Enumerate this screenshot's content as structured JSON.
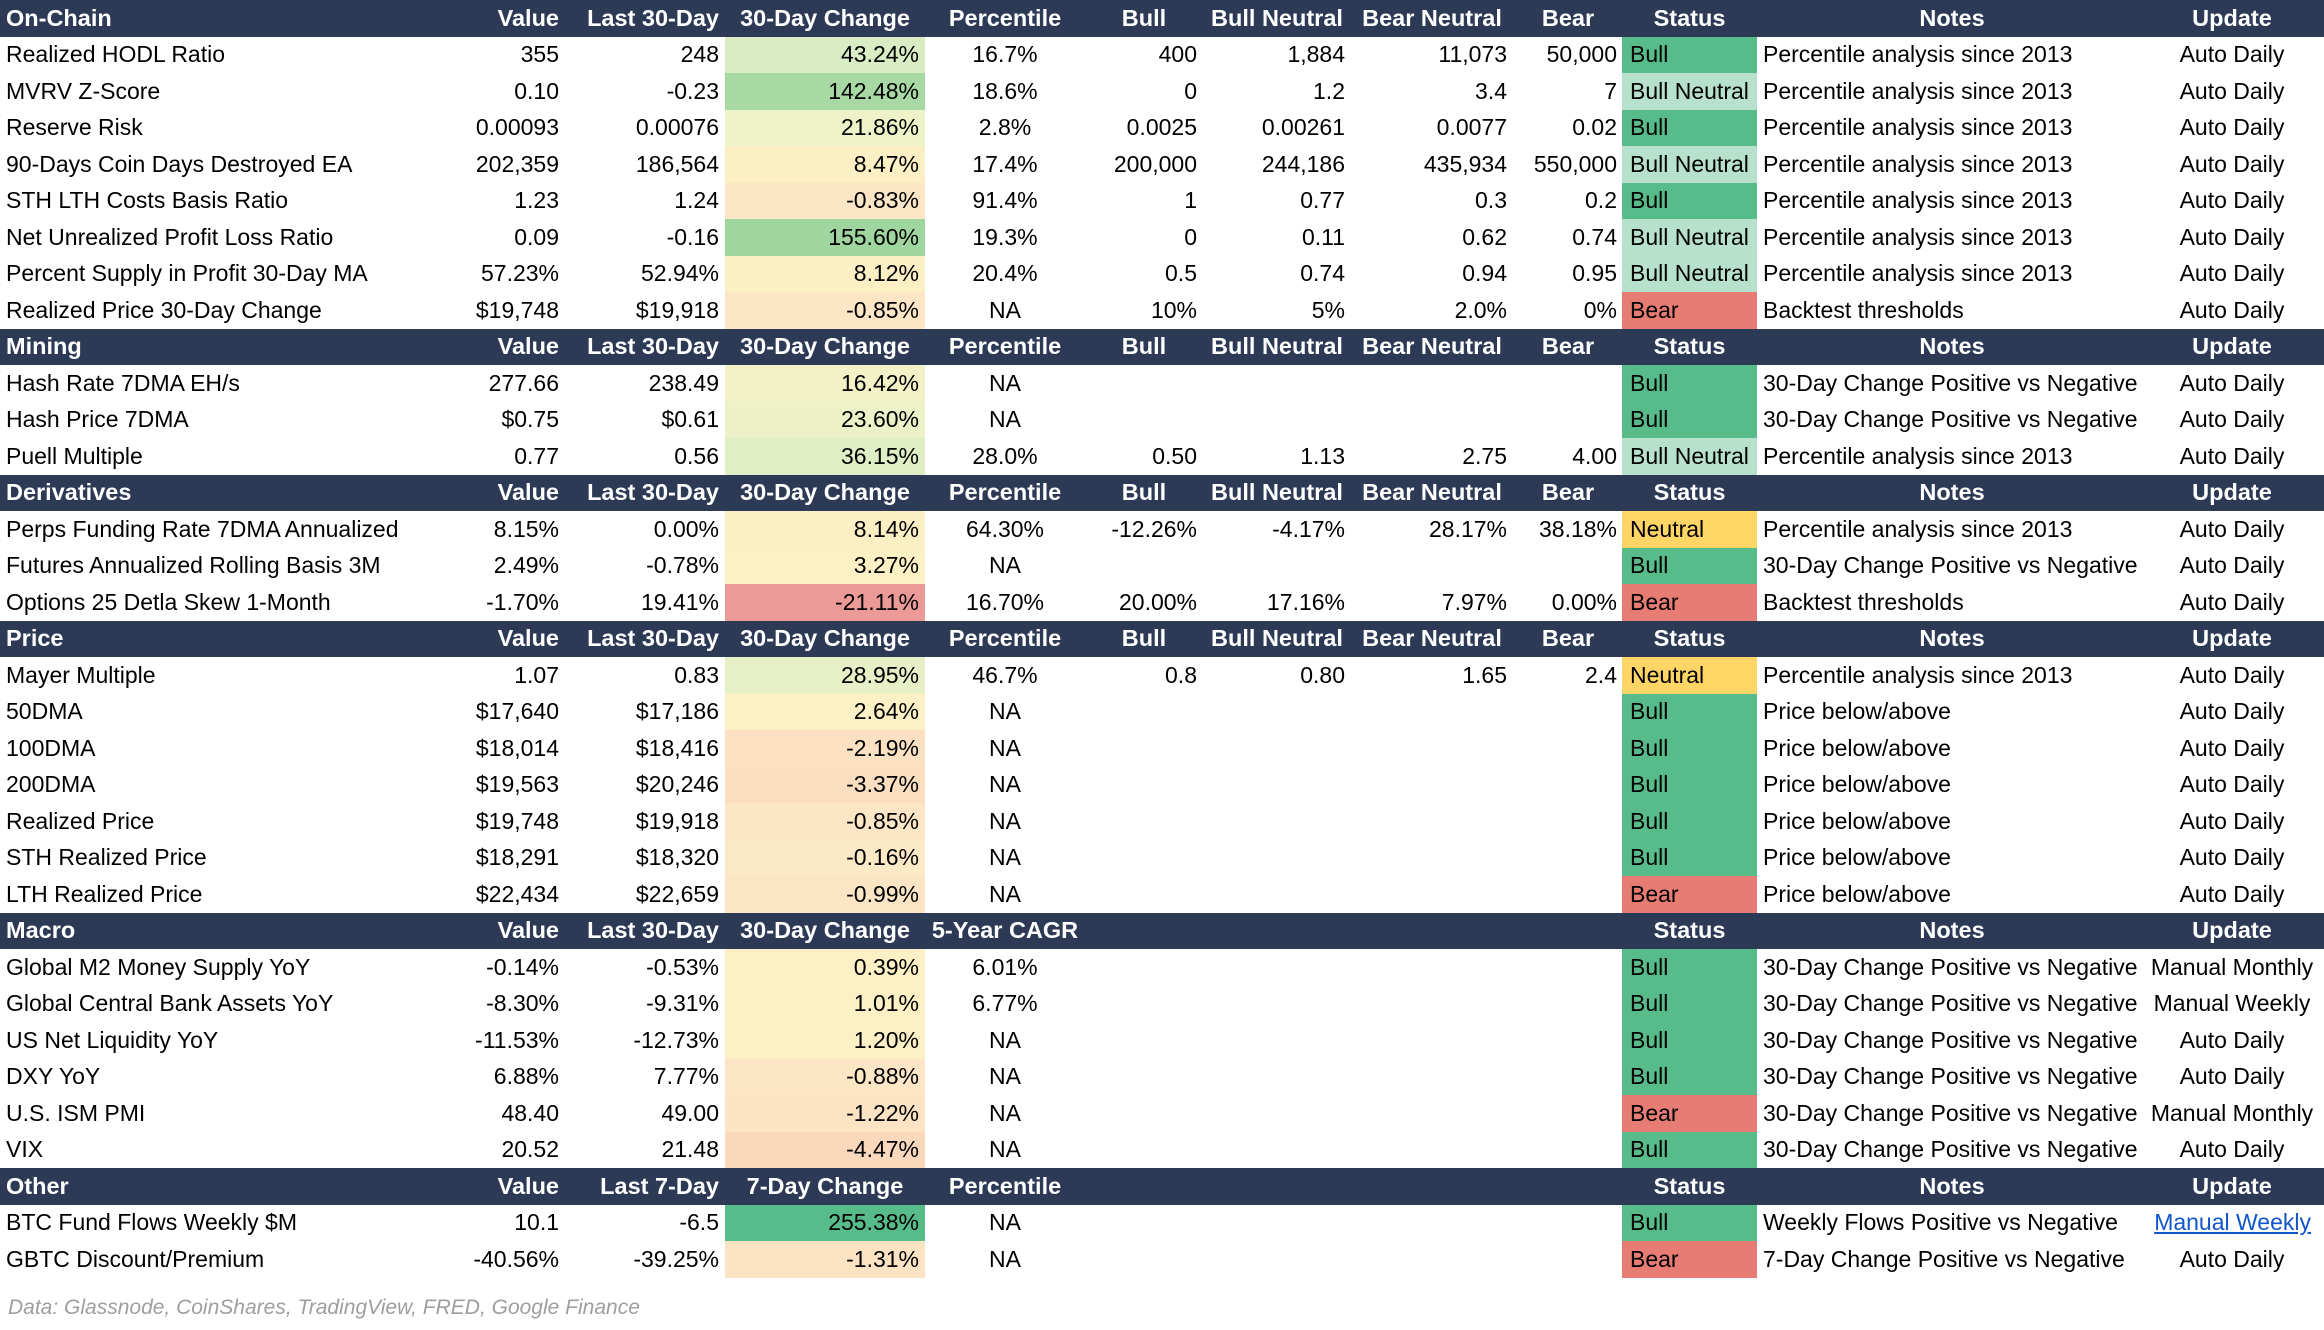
{
  "columns": {
    "value": "Value",
    "last30": "Last 30-Day",
    "change30": "30-Day Change",
    "percentile": "Percentile",
    "bull": "Bull",
    "bull_neutral": "Bull Neutral",
    "bear_neutral": "Bear Neutral",
    "bear": "Bear",
    "status": "Status",
    "notes": "Notes",
    "update": "Update"
  },
  "status_colors": {
    "Bull": "#57bb8a",
    "Bull Neutral": "#b7e1cd",
    "Neutral": "#ffd666",
    "Bear": "#e67c73"
  },
  "sections": [
    {
      "title": "On-Chain",
      "headers": [
        "Value",
        "Last 30-Day",
        "30-Day Change",
        "Percentile",
        "Bull",
        "Bull Neutral",
        "Bear Neutral",
        "Bear",
        "Status",
        "Notes",
        "Update"
      ],
      "rows": [
        {
          "metric": "Realized HODL Ratio",
          "value": "355",
          "last": "248",
          "change": "43.24%",
          "change_color": "#d9ecc3",
          "percentile": "16.7%",
          "bull": "400",
          "bull_neutral": "1,884",
          "bear_neutral": "11,073",
          "bear": "50,000",
          "status": "Bull",
          "notes": "Percentile analysis since 2013",
          "update": "Auto Daily"
        },
        {
          "metric": "MVRV Z-Score",
          "value": "0.10",
          "last": "-0.23",
          "change": "142.48%",
          "change_color": "#a8d8a3",
          "percentile": "18.6%",
          "bull": "0",
          "bull_neutral": "1.2",
          "bear_neutral": "3.4",
          "bear": "7",
          "status": "Bull Neutral",
          "notes": "Percentile analysis since 2013",
          "update": "Auto Daily"
        },
        {
          "metric": "Reserve Risk",
          "value": "0.00093",
          "last": "0.00076",
          "change": "21.86%",
          "change_color": "#eef2c9",
          "percentile": "2.8%",
          "bull": "0.0025",
          "bull_neutral": "0.00261",
          "bear_neutral": "0.0077",
          "bear": "0.02",
          "status": "Bull",
          "notes": "Percentile analysis since 2013",
          "update": "Auto Daily"
        },
        {
          "metric": "90-Days Coin Days Destroyed EA",
          "value": "202,359",
          "last": "186,564",
          "change": "8.47%",
          "change_color": "#fcefc4",
          "percentile": "17.4%",
          "bull": "200,000",
          "bull_neutral": "244,186",
          "bear_neutral": "435,934",
          "bear": "550,000",
          "status": "Bull Neutral",
          "notes": "Percentile analysis since 2013",
          "update": "Auto Daily"
        },
        {
          "metric": "STH LTH Costs Basis Ratio",
          "value": "1.23",
          "last": "1.24",
          "change": "-0.83%",
          "change_color": "#fce6c6",
          "percentile": "91.4%",
          "bull": "1",
          "bull_neutral": "0.77",
          "bear_neutral": "0.3",
          "bear": "0.2",
          "status": "Bull",
          "notes": "Percentile analysis since 2013",
          "update": "Auto Daily"
        },
        {
          "metric": "Net Unrealized Profit Loss Ratio",
          "value": "0.09",
          "last": "-0.16",
          "change": "155.60%",
          "change_color": "#9fd59e",
          "percentile": "19.3%",
          "bull": "0",
          "bull_neutral": "0.11",
          "bear_neutral": "0.62",
          "bear": "0.74",
          "status": "Bull Neutral",
          "notes": "Percentile analysis since 2013",
          "update": "Auto Daily"
        },
        {
          "metric": "Percent Supply in Profit 30-Day MA",
          "value": "57.23%",
          "last": "52.94%",
          "change": "8.12%",
          "change_color": "#fcefc4",
          "percentile": "20.4%",
          "bull": "0.5",
          "bull_neutral": "0.74",
          "bear_neutral": "0.94",
          "bear": "0.95",
          "status": "Bull Neutral",
          "notes": "Percentile analysis since 2013",
          "update": "Auto Daily"
        },
        {
          "metric": "Realized Price 30-Day Change",
          "value": "$19,748",
          "last": "$19,918",
          "change": "-0.85%",
          "change_color": "#fce6c6",
          "percentile": "NA",
          "bull": "10%",
          "bull_neutral": "5%",
          "bear_neutral": "2.0%",
          "bear": "0%",
          "status": "Bear",
          "notes": "Backtest thresholds",
          "update": "Auto Daily"
        }
      ]
    },
    {
      "title": "Mining",
      "headers": [
        "Value",
        "Last 30-Day",
        "30-Day Change",
        "Percentile",
        "Bull",
        "Bull Neutral",
        "Bear Neutral",
        "Bear",
        "Status",
        "Notes",
        "Update"
      ],
      "rows": [
        {
          "metric": "Hash Rate 7DMA EH/s",
          "value": "277.66",
          "last": "238.49",
          "change": "16.42%",
          "change_color": "#f3f1c6",
          "percentile": "NA",
          "bull": "",
          "bull_neutral": "",
          "bear_neutral": "",
          "bear": "",
          "status": "Bull",
          "notes": "30-Day Change Positive vs Negative",
          "update": "Auto Daily"
        },
        {
          "metric": "Hash Price 7DMA",
          "value": "$0.75",
          "last": "$0.61",
          "change": "23.60%",
          "change_color": "#ecf1c8",
          "percentile": "NA",
          "bull": "",
          "bull_neutral": "",
          "bear_neutral": "",
          "bear": "",
          "status": "Bull",
          "notes": "30-Day Change Positive vs Negative",
          "update": "Auto Daily"
        },
        {
          "metric": "Puell Multiple",
          "value": "0.77",
          "last": "0.56",
          "change": "36.15%",
          "change_color": "#e0eec5",
          "percentile": "28.0%",
          "bull": "0.50",
          "bull_neutral": "1.13",
          "bear_neutral": "2.75",
          "bear": "4.00",
          "status": "Bull Neutral",
          "notes": "Percentile analysis since 2013",
          "update": "Auto Daily"
        }
      ]
    },
    {
      "title": "Derivatives",
      "headers": [
        "Value",
        "Last 30-Day",
        "30-Day Change",
        "Percentile",
        "Bull",
        "Bull Neutral",
        "Bear Neutral",
        "Bear",
        "Status",
        "Notes",
        "Update"
      ],
      "rows": [
        {
          "metric": "Perps Funding Rate 7DMA Annualized",
          "value": "8.15%",
          "last": "0.00%",
          "change": "8.14%",
          "change_color": "#fcefc4",
          "percentile": "64.30%",
          "bull": "-12.26%",
          "bull_neutral": "-4.17%",
          "bear_neutral": "28.17%",
          "bear": "38.18%",
          "status": "Neutral",
          "notes": "Percentile analysis since 2013",
          "update": "Auto Daily"
        },
        {
          "metric": "Futures Annualized Rolling Basis 3M",
          "value": "2.49%",
          "last": "-0.78%",
          "change": "3.27%",
          "change_color": "#fdf0c4",
          "percentile": "NA",
          "bull": "",
          "bull_neutral": "",
          "bear_neutral": "",
          "bear": "",
          "status": "Bull",
          "notes": "30-Day Change Positive vs Negative",
          "update": "Auto Daily"
        },
        {
          "metric": "Options 25 Detla Skew 1-Month",
          "value": "-1.70%",
          "last": "19.41%",
          "change": "-21.11%",
          "change_color": "#ec9a97",
          "percentile": "16.70%",
          "bull": "20.00%",
          "bull_neutral": "17.16%",
          "bear_neutral": "7.97%",
          "bear": "0.00%",
          "status": "Bear",
          "notes": "Backtest thresholds",
          "update": "Auto Daily"
        }
      ]
    },
    {
      "title": "Price",
      "headers": [
        "Value",
        "Last 30-Day",
        "30-Day Change",
        "Percentile",
        "Bull",
        "Bull Neutral",
        "Bear Neutral",
        "Bear",
        "Status",
        "Notes",
        "Update"
      ],
      "rows": [
        {
          "metric": "Mayer Multiple",
          "value": "1.07",
          "last": "0.83",
          "change": "28.95%",
          "change_color": "#e6efc6",
          "percentile": "46.7%",
          "bull": "0.8",
          "bull_neutral": "0.80",
          "bear_neutral": "1.65",
          "bear": "2.4",
          "status": "Neutral",
          "notes": "Percentile analysis since 2013",
          "update": "Auto Daily"
        },
        {
          "metric": "50DMA",
          "value": "$17,640",
          "last": "$17,186",
          "change": "2.64%",
          "change_color": "#fdf0c4",
          "percentile": "NA",
          "bull": "",
          "bull_neutral": "",
          "bear_neutral": "",
          "bear": "",
          "status": "Bull",
          "notes": "Price below/above",
          "update": "Auto Daily"
        },
        {
          "metric": "100DMA",
          "value": "$18,014",
          "last": "$18,416",
          "change": "-2.19%",
          "change_color": "#fbe1c2",
          "percentile": "NA",
          "bull": "",
          "bull_neutral": "",
          "bear_neutral": "",
          "bear": "",
          "status": "Bull",
          "notes": "Price below/above",
          "update": "Auto Daily"
        },
        {
          "metric": "200DMA",
          "value": "$19,563",
          "last": "$20,246",
          "change": "-3.37%",
          "change_color": "#fadebf",
          "percentile": "NA",
          "bull": "",
          "bull_neutral": "",
          "bear_neutral": "",
          "bear": "",
          "status": "Bull",
          "notes": "Price below/above",
          "update": "Auto Daily"
        },
        {
          "metric": "Realized Price",
          "value": "$19,748",
          "last": "$19,918",
          "change": "-0.85%",
          "change_color": "#fce6c6",
          "percentile": "NA",
          "bull": "",
          "bull_neutral": "",
          "bear_neutral": "",
          "bear": "",
          "status": "Bull",
          "notes": "Price below/above",
          "update": "Auto Daily"
        },
        {
          "metric": "STH Realized Price",
          "value": "$18,291",
          "last": "$18,320",
          "change": "-0.16%",
          "change_color": "#fce9c6",
          "percentile": "NA",
          "bull": "",
          "bull_neutral": "",
          "bear_neutral": "",
          "bear": "",
          "status": "Bull",
          "notes": "Price below/above",
          "update": "Auto Daily"
        },
        {
          "metric": "LTH Realized Price",
          "value": "$22,434",
          "last": "$22,659",
          "change": "-0.99%",
          "change_color": "#fce5c5",
          "percentile": "NA",
          "bull": "",
          "bull_neutral": "",
          "bear_neutral": "",
          "bear": "",
          "status": "Bear",
          "notes": "Price below/above",
          "update": "Auto Daily"
        }
      ]
    },
    {
      "title": "Macro",
      "headers": [
        "Value",
        "Last 30-Day",
        "30-Day Change",
        "5-Year CAGR",
        "",
        "",
        "",
        "",
        "Status",
        "Notes",
        "Update"
      ],
      "rows": [
        {
          "metric": "Global M2 Money Supply YoY",
          "value": "-0.14%",
          "last": "-0.53%",
          "change": "0.39%",
          "change_color": "#fdf0c5",
          "percentile": "6.01%",
          "bull": "",
          "bull_neutral": "",
          "bear_neutral": "",
          "bear": "",
          "status": "Bull",
          "notes": "30-Day Change Positive vs Negative",
          "update": "Manual Monthly"
        },
        {
          "metric": "Global Central Bank Assets YoY",
          "value": "-8.30%",
          "last": "-9.31%",
          "change": "1.01%",
          "change_color": "#fdf0c5",
          "percentile": "6.77%",
          "bull": "",
          "bull_neutral": "",
          "bear_neutral": "",
          "bear": "",
          "status": "Bull",
          "notes": "30-Day Change Positive vs Negative",
          "update": "Manual Weekly"
        },
        {
          "metric": "US Net Liquidity YoY",
          "value": "-11.53%",
          "last": "-12.73%",
          "change": "1.20%",
          "change_color": "#fdf0c5",
          "percentile": "NA",
          "bull": "",
          "bull_neutral": "",
          "bear_neutral": "",
          "bear": "",
          "status": "Bull",
          "notes": "30-Day Change Positive vs Negative",
          "update": "Auto Daily"
        },
        {
          "metric": "DXY YoY",
          "value": "6.88%",
          "last": "7.77%",
          "change": "-0.88%",
          "change_color": "#fce6c6",
          "percentile": "NA",
          "bull": "",
          "bull_neutral": "",
          "bear_neutral": "",
          "bear": "",
          "status": "Bull",
          "notes": "30-Day Change Positive vs Negative",
          "update": "Auto Daily"
        },
        {
          "metric": "U.S. ISM PMI",
          "value": "48.40",
          "last": "49.00",
          "change": "-1.22%",
          "change_color": "#fce3c4",
          "percentile": "NA",
          "bull": "",
          "bull_neutral": "",
          "bear_neutral": "",
          "bear": "",
          "status": "Bear",
          "notes": "30-Day Change Positive vs Negative",
          "update": "Manual Monthly"
        },
        {
          "metric": "VIX",
          "value": "20.52",
          "last": "21.48",
          "change": "-4.47%",
          "change_color": "#f9d8bc",
          "percentile": "NA",
          "bull": "",
          "bull_neutral": "",
          "bear_neutral": "",
          "bear": "",
          "status": "Bull",
          "notes": "30-Day Change Positive vs Negative",
          "update": "Auto Daily"
        }
      ]
    },
    {
      "title": "Other",
      "headers": [
        "Value",
        "Last 7-Day",
        "7-Day Change",
        "Percentile",
        "",
        "",
        "",
        "",
        "Status",
        "Notes",
        "Update"
      ],
      "rows": [
        {
          "metric": "BTC Fund Flows Weekly $M",
          "value": "10.1",
          "last": "-6.5",
          "change": "255.38%",
          "change_color": "#57bb8a",
          "percentile": "NA",
          "bull": "",
          "bull_neutral": "",
          "bear_neutral": "",
          "bear": "",
          "status": "Bull",
          "notes": "Weekly Flows Positive vs Negative",
          "update": "Manual Weekly",
          "update_link": true
        },
        {
          "metric": "GBTC Discount/Premium",
          "value": "-40.56%",
          "last": "-39.25%",
          "change": "-1.31%",
          "change_color": "#fce3c4",
          "percentile": "NA",
          "bull": "",
          "bull_neutral": "",
          "bear_neutral": "",
          "bear": "",
          "status": "Bear",
          "notes": "7-Day Change Positive vs Negative",
          "update": "Auto Daily"
        }
      ]
    }
  ],
  "source": "Data: Glassnode, CoinShares, TradingView, FRED, Google Finance"
}
